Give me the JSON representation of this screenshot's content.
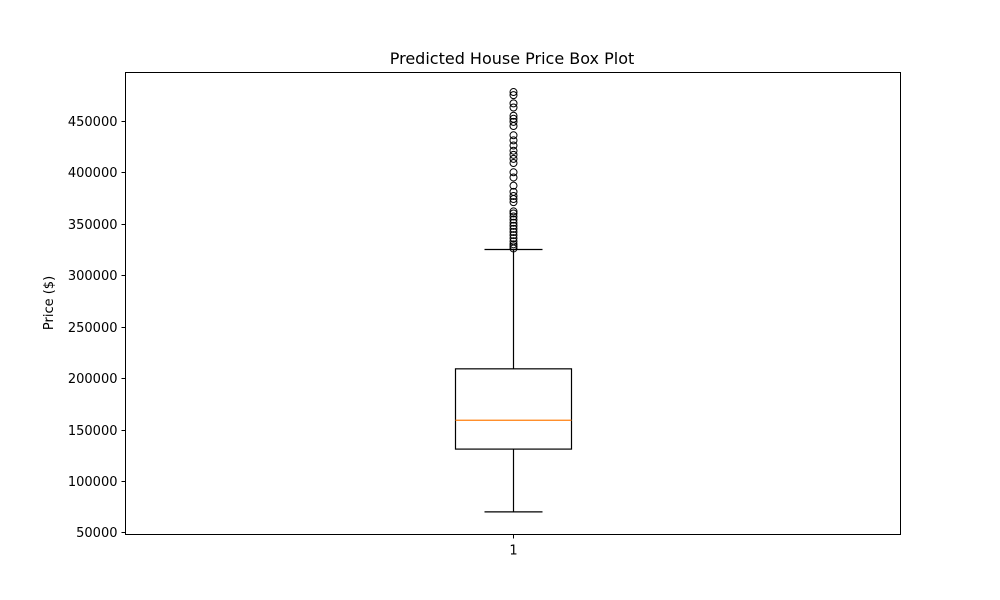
{
  "chart_data": {
    "type": "box",
    "title": "Predicted House Price Box Plot",
    "xlabel": "",
    "ylabel": "Price ($)",
    "categories": [
      "1"
    ],
    "ylim": [
      48000,
      497000
    ],
    "yticks": [
      50000,
      100000,
      150000,
      200000,
      250000,
      300000,
      350000,
      400000,
      450000
    ],
    "ytick_labels": [
      "50000",
      "100000",
      "150000",
      "200000",
      "250000",
      "300000",
      "350000",
      "400000",
      "450000"
    ],
    "grid": false,
    "series": [
      {
        "whisker_low": 70000,
        "q1": 131000,
        "median": 159000,
        "q3": 209000,
        "whisker_high": 325000,
        "outliers": [
          326000,
          328000,
          330000,
          333000,
          336000,
          339000,
          342000,
          345000,
          348000,
          351000,
          354000,
          357000,
          360000,
          362000,
          371000,
          374000,
          377000,
          381000,
          387000,
          395000,
          400000,
          409000,
          413000,
          417000,
          421000,
          426000,
          431000,
          436000,
          445000,
          449000,
          452000,
          455000,
          463000,
          467000,
          475000,
          478000
        ]
      }
    ],
    "colors": {
      "box": "#000000",
      "median": "#ff7f0e",
      "outlier": "#000000"
    }
  }
}
